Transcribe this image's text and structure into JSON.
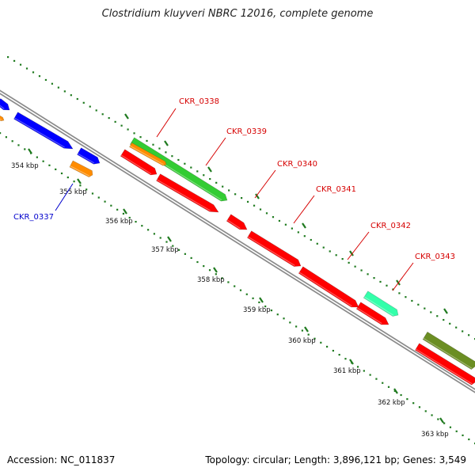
{
  "title": "Clostridium kluyveri NBRC 12016, complete genome",
  "footer": {
    "accession": "Accession: NC_011837",
    "topology": "Topology: circular; Length: 3,896,121 bp; Genes: 3,549"
  },
  "colors": {
    "backbone": "#8a8a8a",
    "tick": "#1f7a1f",
    "label_red": "#d60000",
    "label_blue": "#0000cc",
    "red": "#ff0000",
    "blue": "#0000ff",
    "orange": "#ff8c00",
    "green": "#33cc33",
    "aquamarine": "#33ffaa",
    "olive": "#6b8e23"
  },
  "ruler": [
    {
      "label": "354 kbp",
      "kbp": 354
    },
    {
      "label": "355 kbp",
      "kbp": 355
    },
    {
      "label": "356 kbp",
      "kbp": 356
    },
    {
      "label": "357 kbp",
      "kbp": 357
    },
    {
      "label": "358 kbp",
      "kbp": 358
    },
    {
      "label": "359 kbp",
      "kbp": 359
    },
    {
      "label": "360 kbp",
      "kbp": 360
    },
    {
      "label": "361 kbp",
      "kbp": 361
    },
    {
      "label": "362 kbp",
      "kbp": 362
    },
    {
      "label": "363 kbp",
      "kbp": 363
    }
  ],
  "gene_labels": [
    {
      "text": "CKR_0337",
      "color": "label_blue"
    },
    {
      "text": "CKR_0338",
      "color": "label_red"
    },
    {
      "text": "CKR_0339",
      "color": "label_red"
    },
    {
      "text": "CKR_0340",
      "color": "label_red"
    },
    {
      "text": "CKR_0341",
      "color": "label_red"
    },
    {
      "text": "CKR_0342",
      "color": "label_red"
    },
    {
      "text": "CKR_0343",
      "color": "label_red"
    }
  ]
}
